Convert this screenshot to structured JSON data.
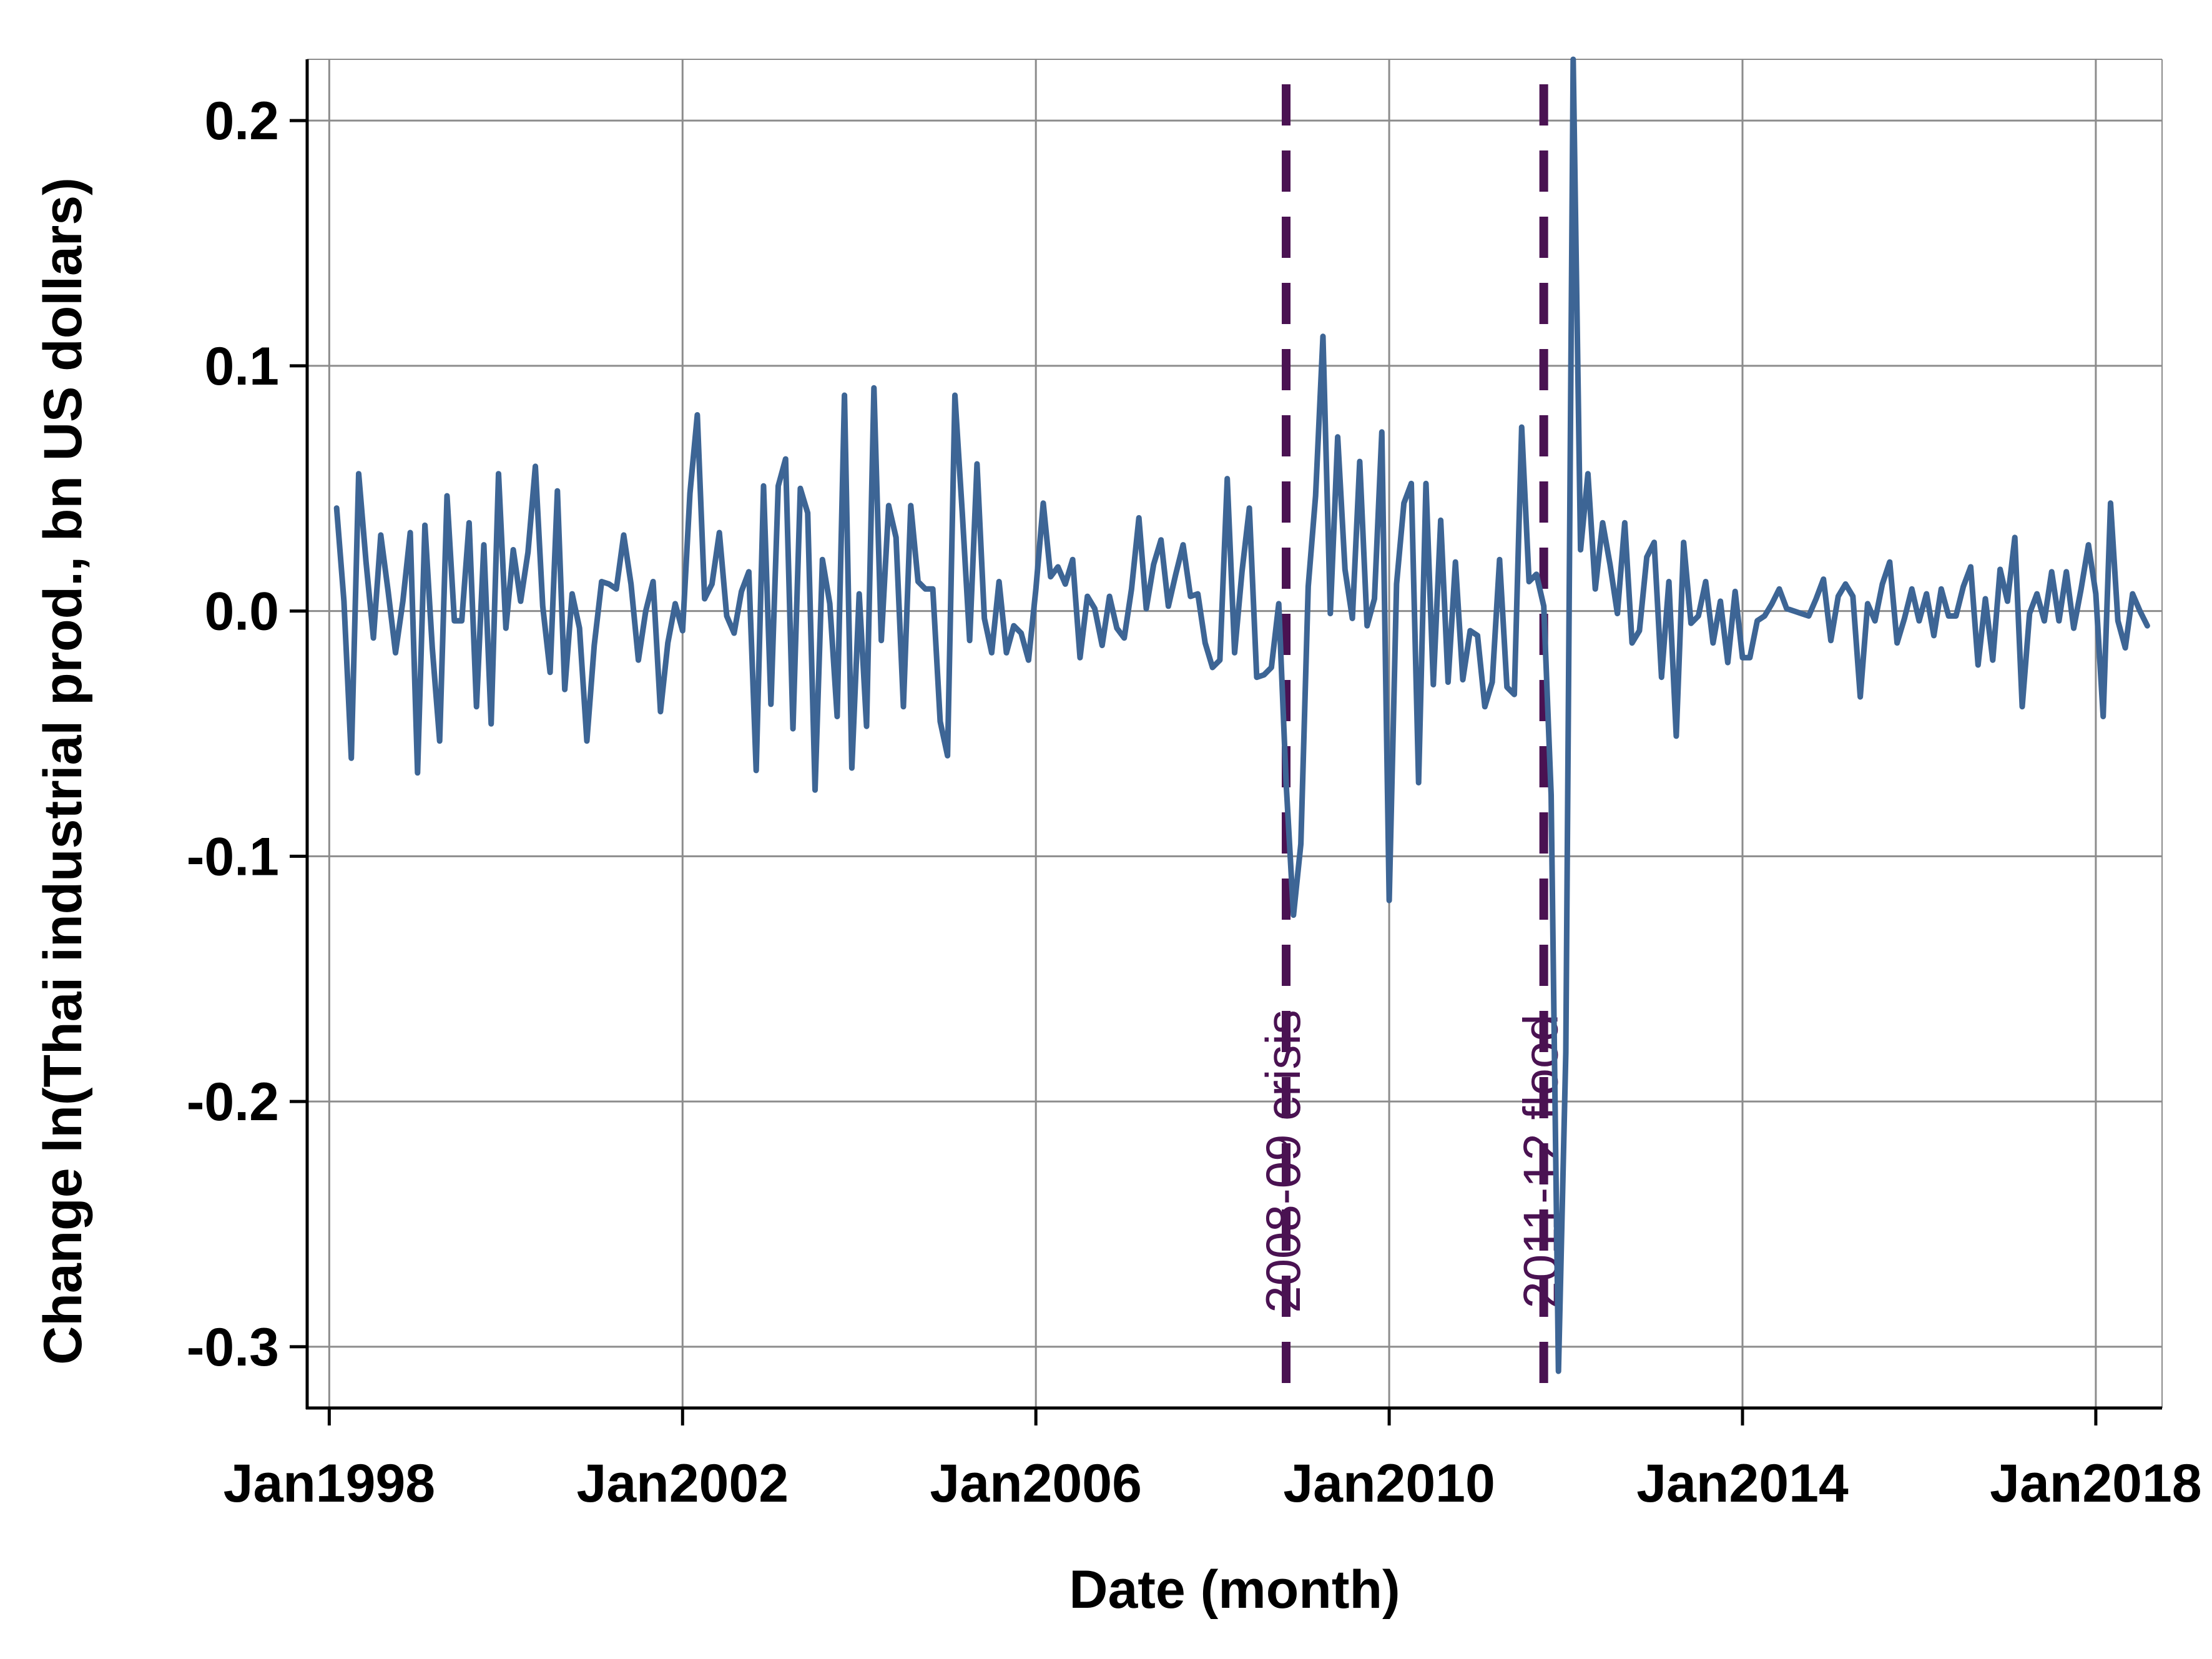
{
  "colors": {
    "series": "#3d6595",
    "event_line": "#4a1252",
    "grid": "#8c8c8c",
    "axis": "#000000"
  },
  "chart_data": {
    "type": "line",
    "title": "",
    "xlabel": "Date (month)",
    "ylabel": "Change ln(Thai industrial prod., bn US dollars)",
    "x_unit": "month",
    "xlim": [
      "1997-10",
      "2018-10"
    ],
    "ylim": [
      -0.325,
      0.225
    ],
    "grid": true,
    "legend": "none",
    "x_ticks": [
      {
        "date": "1998-01",
        "label": "Jan1998"
      },
      {
        "date": "2002-01",
        "label": "Jan2002"
      },
      {
        "date": "2006-01",
        "label": "Jan2006"
      },
      {
        "date": "2010-01",
        "label": "Jan2010"
      },
      {
        "date": "2014-01",
        "label": "Jan2014"
      },
      {
        "date": "2018-01",
        "label": "Jan2018"
      }
    ],
    "y_ticks": [
      {
        "value": 0.2,
        "label": "0.2"
      },
      {
        "value": 0.1,
        "label": "0.1"
      },
      {
        "value": 0.0,
        "label": "0.0"
      },
      {
        "value": -0.1,
        "label": "-0.1"
      },
      {
        "value": -0.2,
        "label": "-0.2"
      },
      {
        "value": -0.3,
        "label": "-0.3"
      }
    ],
    "events": [
      {
        "date": "2008-11",
        "label": "2008-09 crisis"
      },
      {
        "date": "2011-10",
        "label": "2011-12 flood"
      }
    ],
    "series": [
      {
        "start": "1998-02",
        "values": [
          0.042,
          0.004,
          -0.06,
          0.056,
          0.02,
          -0.011,
          0.031,
          0.008,
          -0.017,
          0.004,
          0.032,
          -0.066,
          0.035,
          -0.015,
          -0.053,
          0.047,
          -0.004,
          -0.004,
          0.036,
          -0.039,
          0.027,
          -0.046,
          0.056,
          -0.007,
          0.025,
          0.004,
          0.024,
          0.059,
          0.002,
          -0.025,
          0.049,
          -0.032,
          0.007,
          -0.007,
          -0.053,
          -0.014,
          0.012,
          0.011,
          0.009,
          0.031,
          0.011,
          -0.02,
          0.0,
          0.012,
          -0.041,
          -0.013,
          0.003,
          -0.008,
          0.048,
          0.08,
          0.005,
          0.011,
          0.032,
          -0.002,
          -0.009,
          0.008,
          0.016,
          -0.065,
          0.051,
          -0.038,
          0.051,
          0.062,
          -0.048,
          0.05,
          0.04,
          -0.073,
          0.021,
          0.003,
          -0.043,
          0.088,
          -0.064,
          0.007,
          -0.047,
          0.091,
          -0.012,
          0.043,
          0.03,
          -0.039,
          0.043,
          0.012,
          0.009,
          0.009,
          -0.045,
          -0.059,
          0.088,
          0.04,
          -0.012,
          0.06,
          -0.003,
          -0.017,
          0.012,
          -0.017,
          -0.006,
          -0.009,
          -0.02,
          0.009,
          0.044,
          0.014,
          0.018,
          0.011,
          0.021,
          -0.019,
          0.006,
          0.001,
          -0.014,
          0.006,
          -0.007,
          -0.011,
          0.009,
          0.038,
          0.001,
          0.019,
          0.029,
          0.002,
          0.015,
          0.027,
          0.006,
          0.007,
          -0.013,
          -0.023,
          -0.02,
          0.054,
          -0.017,
          0.016,
          0.042,
          -0.027,
          -0.026,
          -0.023,
          0.003,
          -0.07,
          -0.124,
          -0.095,
          0.01,
          0.047,
          0.112,
          -0.001,
          0.071,
          0.017,
          -0.003,
          0.061,
          -0.006,
          0.005,
          0.073,
          -0.118,
          0.011,
          0.044,
          0.052,
          -0.07,
          0.052,
          -0.03,
          0.037,
          -0.029,
          0.02,
          -0.028,
          -0.008,
          -0.01,
          -0.039,
          -0.029,
          0.021,
          -0.031,
          -0.034,
          0.075,
          0.012,
          0.015,
          0.002,
          -0.075,
          -0.31,
          -0.18,
          0.225,
          0.025,
          0.056,
          0.009,
          0.036,
          0.019,
          -0.001,
          0.036,
          -0.013,
          -0.008,
          0.022,
          0.028,
          -0.027,
          0.012,
          -0.051,
          0.028,
          -0.005,
          -0.002,
          0.012,
          -0.013,
          0.004,
          -0.021,
          0.008,
          -0.019,
          -0.019,
          -0.004,
          -0.002,
          0.003,
          0.009,
          0.001,
          0.0,
          -0.001,
          -0.002,
          0.005,
          0.013,
          -0.012,
          0.006,
          0.011,
          0.006,
          -0.035,
          0.003,
          -0.004,
          0.011,
          0.02,
          -0.013,
          -0.003,
          0.009,
          -0.004,
          0.007,
          -0.01,
          0.009,
          -0.002,
          -0.002,
          0.01,
          0.018,
          -0.022,
          0.005,
          -0.02,
          0.017,
          0.004,
          0.03,
          -0.039,
          -0.001,
          0.007,
          -0.004,
          0.016,
          -0.004,
          0.016,
          -0.007,
          0.009,
          0.027,
          0.007,
          -0.043,
          0.044,
          -0.004,
          -0.015,
          0.007,
          0.0,
          -0.006
        ]
      }
    ]
  }
}
